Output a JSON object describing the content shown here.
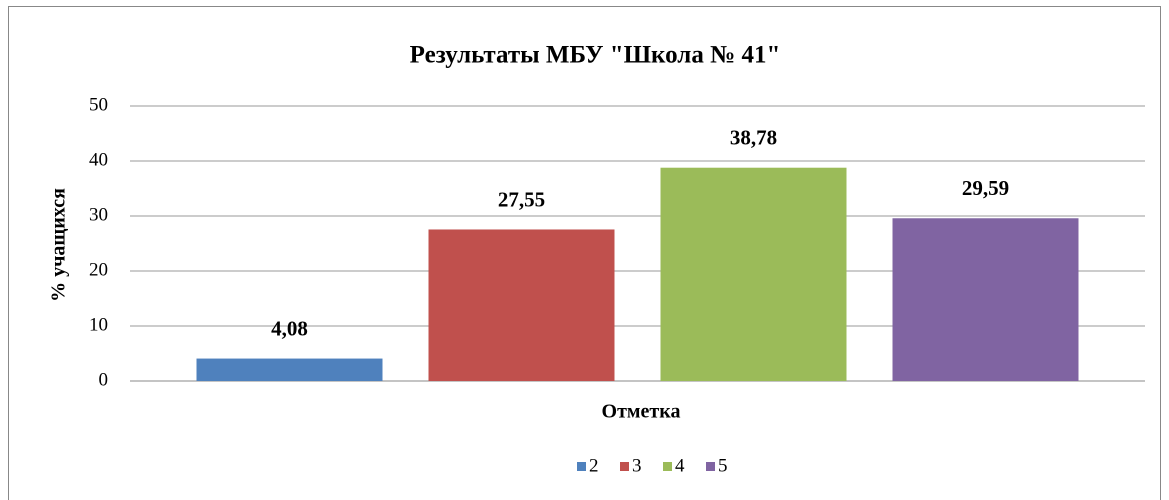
{
  "chart_data": {
    "type": "bar",
    "title": "Результаты  МБУ \"Школа № 41\"",
    "x_label": "Отметка",
    "y_label": "% учащихся",
    "categories": [
      null
    ],
    "series": [
      {
        "name": "2",
        "color": "#4f81bd",
        "values": [
          4.08
        ],
        "value_labels": [
          "4,08"
        ]
      },
      {
        "name": "3",
        "color": "#c0504d",
        "values": [
          27.55
        ],
        "value_labels": [
          "27,55"
        ]
      },
      {
        "name": "4",
        "color": "#9bbb59",
        "values": [
          38.78
        ],
        "value_labels": [
          "38,78"
        ]
      },
      {
        "name": "5",
        "color": "#8064a2",
        "values": [
          29.59
        ],
        "value_labels": [
          "29,59"
        ]
      }
    ],
    "ylim": [
      0,
      50
    ],
    "yticks": [
      0,
      10,
      20,
      30,
      40,
      50
    ],
    "grid": true,
    "legend": "bottom"
  }
}
